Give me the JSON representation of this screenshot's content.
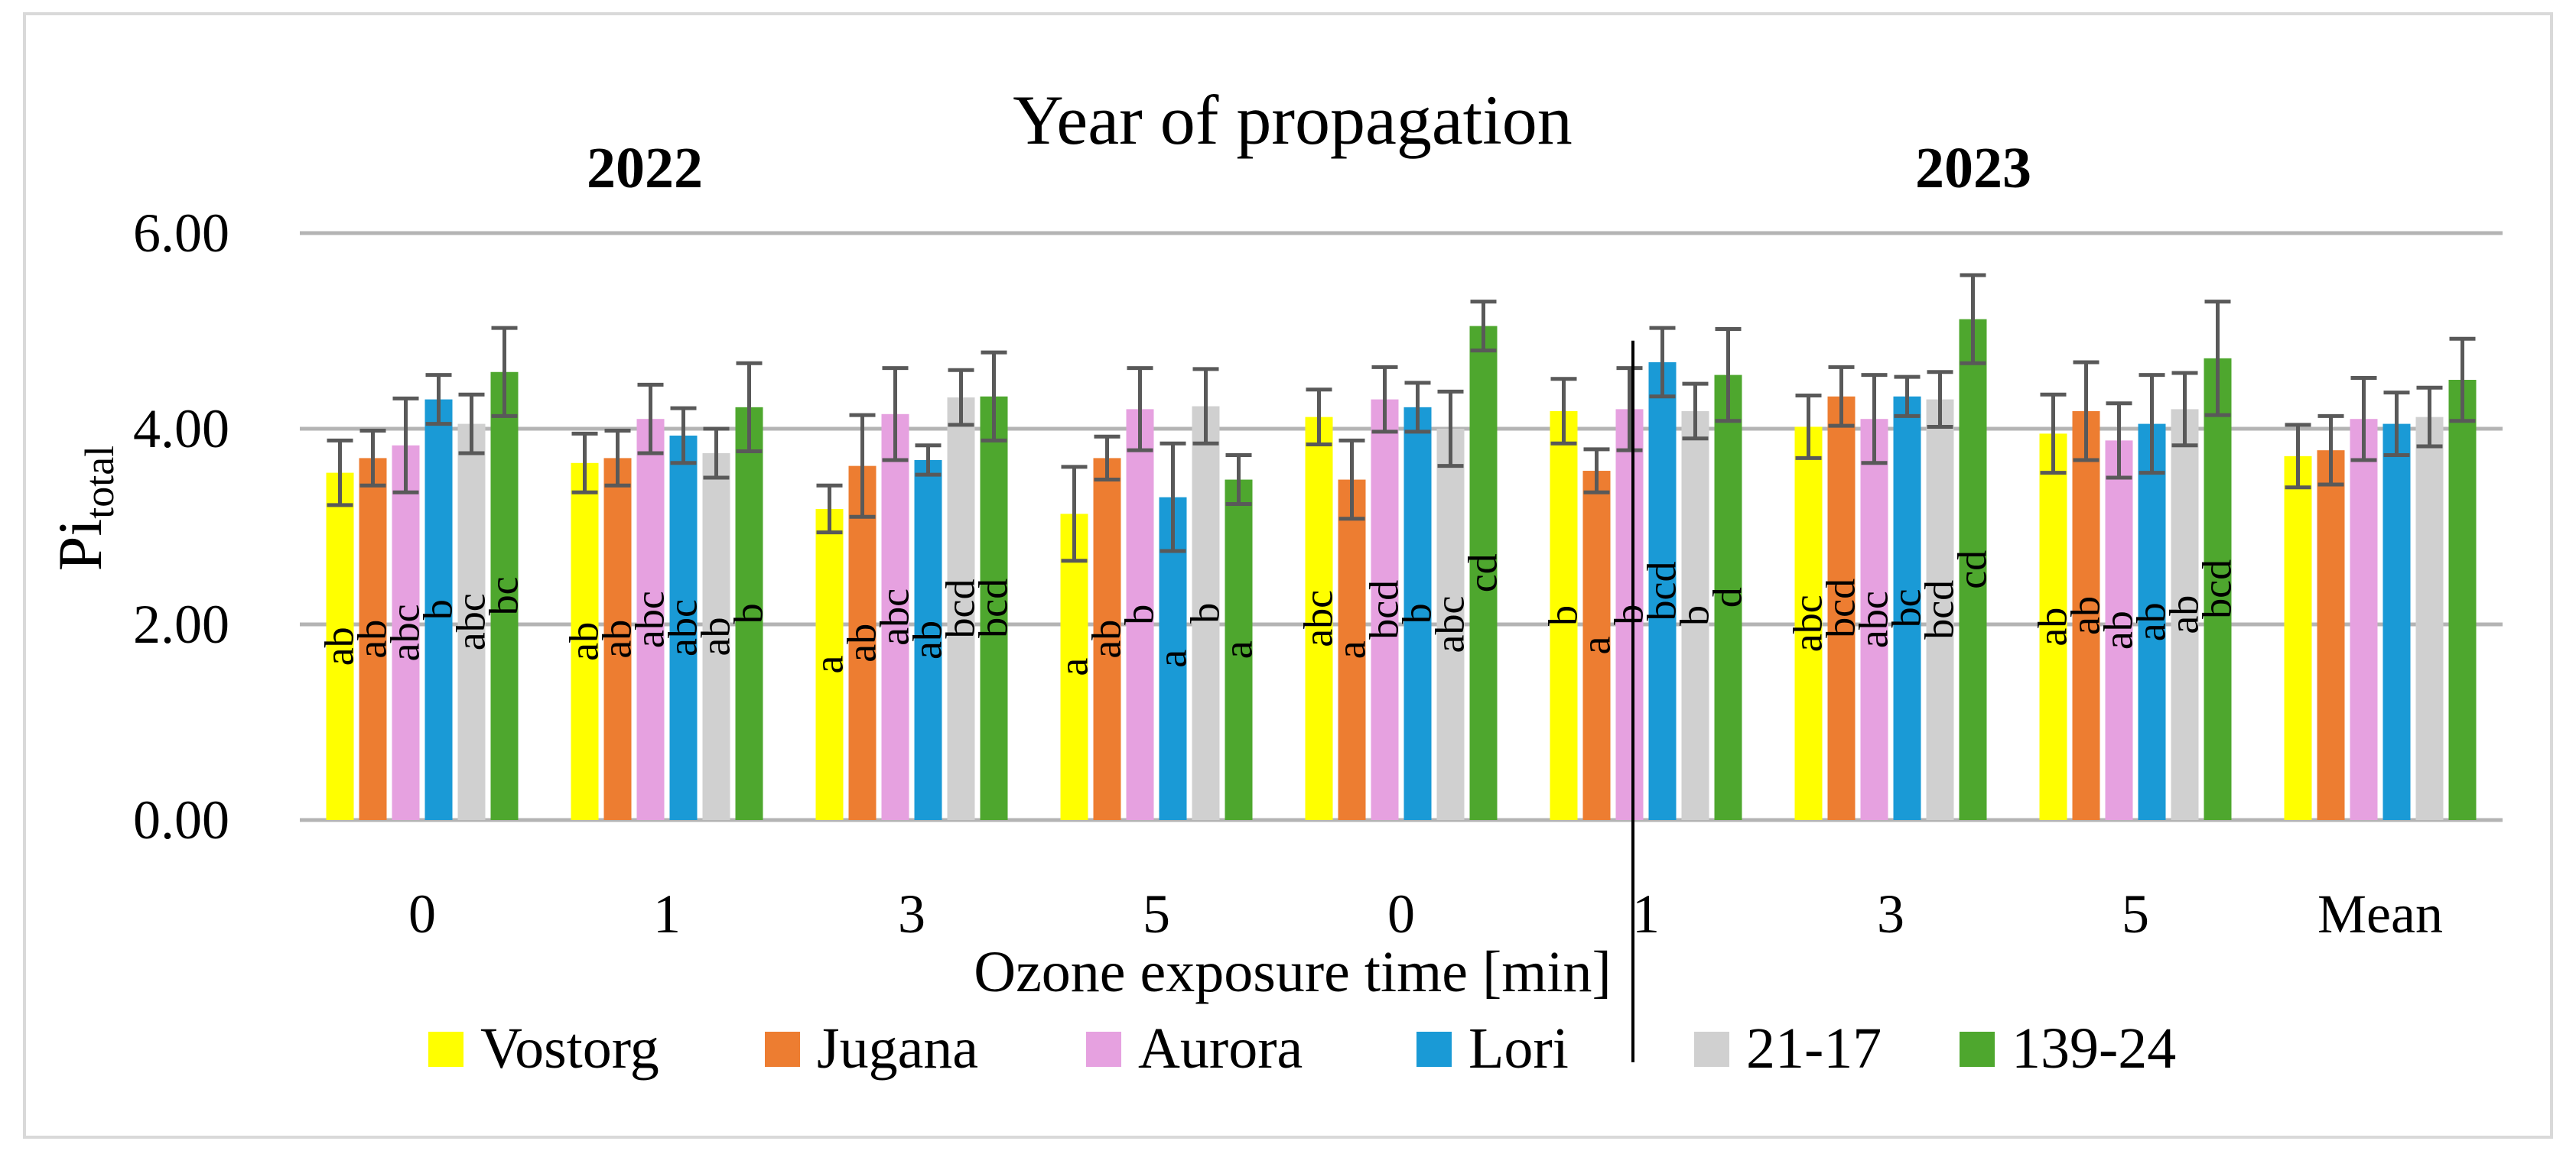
{
  "chart_data": {
    "type": "bar",
    "title": "Year of propagation",
    "group_labels": [
      "2022",
      "2023"
    ],
    "xlabel": "Ozone exposure time [min]",
    "ylabel_main": "Pi",
    "ylabel_sub": "total",
    "ylim": [
      0,
      6
    ],
    "yticks": [
      "0.00",
      "2.00",
      "4.00",
      "6.00"
    ],
    "categories": [
      "0",
      "1",
      "3",
      "5",
      "0",
      "1",
      "3",
      "5",
      "Mean"
    ],
    "category_year": [
      "2022",
      "2022",
      "2022",
      "2022",
      "2023",
      "2023",
      "2023",
      "2023",
      ""
    ],
    "legend_position": "bottom",
    "series": [
      {
        "name": "Vostorg",
        "color": "#ffff00",
        "values": [
          3.55,
          3.65,
          3.18,
          3.13,
          4.12,
          4.18,
          4.02,
          3.95,
          3.72
        ],
        "errors": [
          0.33,
          0.3,
          0.24,
          0.48,
          0.28,
          0.33,
          0.32,
          0.4,
          0.32
        ],
        "letters": [
          "ab",
          "ab",
          "a",
          "a",
          "abc",
          "b",
          "abc",
          "ab",
          ""
        ]
      },
      {
        "name": "Jugana",
        "color": "#ed7d31",
        "values": [
          3.7,
          3.7,
          3.62,
          3.7,
          3.48,
          3.57,
          4.33,
          4.18,
          3.78
        ],
        "errors": [
          0.28,
          0.28,
          0.52,
          0.22,
          0.4,
          0.22,
          0.3,
          0.5,
          0.35
        ],
        "letters": [
          "ab",
          "ab",
          "ab",
          "ab",
          "a",
          "a",
          "bcd",
          "ab",
          ""
        ]
      },
      {
        "name": "Aurora",
        "color": "#e6a1e0",
        "values": [
          3.83,
          4.1,
          4.15,
          4.2,
          4.3,
          4.2,
          4.1,
          3.88,
          4.1
        ],
        "errors": [
          0.48,
          0.35,
          0.47,
          0.42,
          0.33,
          0.42,
          0.45,
          0.38,
          0.42
        ],
        "letters": [
          "abc",
          "abc",
          "abc",
          "b",
          "bcd",
          "b",
          "abc",
          "ab",
          ""
        ]
      },
      {
        "name": "Lori",
        "color": "#1a9ad6",
        "values": [
          4.3,
          3.93,
          3.68,
          3.3,
          4.22,
          4.68,
          4.33,
          4.05,
          4.05
        ],
        "errors": [
          0.25,
          0.28,
          0.15,
          0.55,
          0.25,
          0.35,
          0.2,
          0.5,
          0.32
        ],
        "letters": [
          "b",
          "abc",
          "ab",
          "a",
          "b",
          "bcd",
          "bc",
          "ab",
          ""
        ]
      },
      {
        "name": "21-17",
        "color": "#d0d0d0",
        "values": [
          4.05,
          3.75,
          4.32,
          4.23,
          4.0,
          4.18,
          4.3,
          4.2,
          4.12
        ],
        "errors": [
          0.3,
          0.25,
          0.28,
          0.38,
          0.38,
          0.28,
          0.28,
          0.37,
          0.3
        ],
        "letters": [
          "abc",
          "ab",
          "bcd",
          "b",
          "abc",
          "b",
          "bcd",
          "ab",
          ""
        ]
      },
      {
        "name": "139-24",
        "color": "#4ea72e",
        "values": [
          4.58,
          4.22,
          4.33,
          3.48,
          5.05,
          4.55,
          5.12,
          4.72,
          4.5
        ],
        "errors": [
          0.45,
          0.45,
          0.45,
          0.25,
          0.25,
          0.47,
          0.45,
          0.58,
          0.42
        ],
        "letters": [
          "bc",
          "b",
          "bcd",
          "a",
          "cd",
          "d",
          "cd",
          "bcd",
          ""
        ]
      }
    ]
  }
}
